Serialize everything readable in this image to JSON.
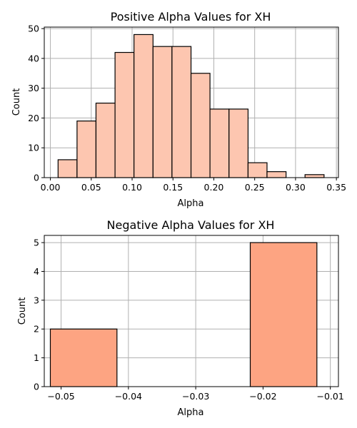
{
  "chart_data": [
    {
      "type": "bar",
      "title": "Positive Alpha Values for XH",
      "xlabel": "Alpha",
      "ylabel": "Count",
      "xlim": [
        -0.0075,
        0.3525
      ],
      "ylim": [
        0,
        50.5
      ],
      "xticks": [
        0.0,
        0.05,
        0.1,
        0.15,
        0.2,
        0.25,
        0.3,
        0.35
      ],
      "xtick_labels": [
        "0.00",
        "0.05",
        "0.10",
        "0.15",
        "0.20",
        "0.25",
        "0.30",
        "0.35"
      ],
      "yticks": [
        0,
        10,
        20,
        30,
        40,
        50
      ],
      "ytick_labels": [
        "0",
        "10",
        "20",
        "30",
        "40",
        "50"
      ],
      "grid": true,
      "bar_color": "#fdc6b0",
      "edge_color": "#000000",
      "bins": [
        {
          "x0": 0.0094,
          "x1": 0.0326,
          "count": 6
        },
        {
          "x0": 0.0326,
          "x1": 0.0558,
          "count": 19
        },
        {
          "x0": 0.0558,
          "x1": 0.0791,
          "count": 25
        },
        {
          "x0": 0.0791,
          "x1": 0.1023,
          "count": 42
        },
        {
          "x0": 0.1023,
          "x1": 0.1256,
          "count": 48
        },
        {
          "x0": 0.1256,
          "x1": 0.1488,
          "count": 44
        },
        {
          "x0": 0.1488,
          "x1": 0.1721,
          "count": 44
        },
        {
          "x0": 0.1721,
          "x1": 0.1953,
          "count": 35
        },
        {
          "x0": 0.1953,
          "x1": 0.2186,
          "count": 23
        },
        {
          "x0": 0.2186,
          "x1": 0.2419,
          "count": 23
        },
        {
          "x0": 0.2419,
          "x1": 0.2651,
          "count": 5
        },
        {
          "x0": 0.2651,
          "x1": 0.2884,
          "count": 2
        },
        {
          "x0": 0.2884,
          "x1": 0.3116,
          "count": 0
        },
        {
          "x0": 0.3116,
          "x1": 0.3349,
          "count": 1
        }
      ]
    },
    {
      "type": "bar",
      "title": "Negative Alpha Values for XH",
      "xlabel": "Alpha",
      "ylabel": "Count",
      "xlim": [
        -0.0525,
        -0.0088
      ],
      "ylim": [
        0,
        5.25
      ],
      "xticks": [
        -0.05,
        -0.04,
        -0.03,
        -0.02,
        -0.01
      ],
      "xtick_labels": [
        "−0.05",
        "−0.04",
        "−0.03",
        "−0.02",
        "−0.01"
      ],
      "yticks": [
        0,
        1,
        2,
        3,
        4,
        5
      ],
      "ytick_labels": [
        "0",
        "1",
        "2",
        "3",
        "4",
        "5"
      ],
      "grid": true,
      "bar_color": "#fda482",
      "edge_color": "#000000",
      "bins": [
        {
          "x0": -0.0516,
          "x1": -0.0417,
          "count": 2
        },
        {
          "x0": -0.0417,
          "x1": -0.0318,
          "count": 0
        },
        {
          "x0": -0.0318,
          "x1": -0.0219,
          "count": 0
        },
        {
          "x0": -0.0219,
          "x1": -0.012,
          "count": 5
        }
      ]
    }
  ]
}
